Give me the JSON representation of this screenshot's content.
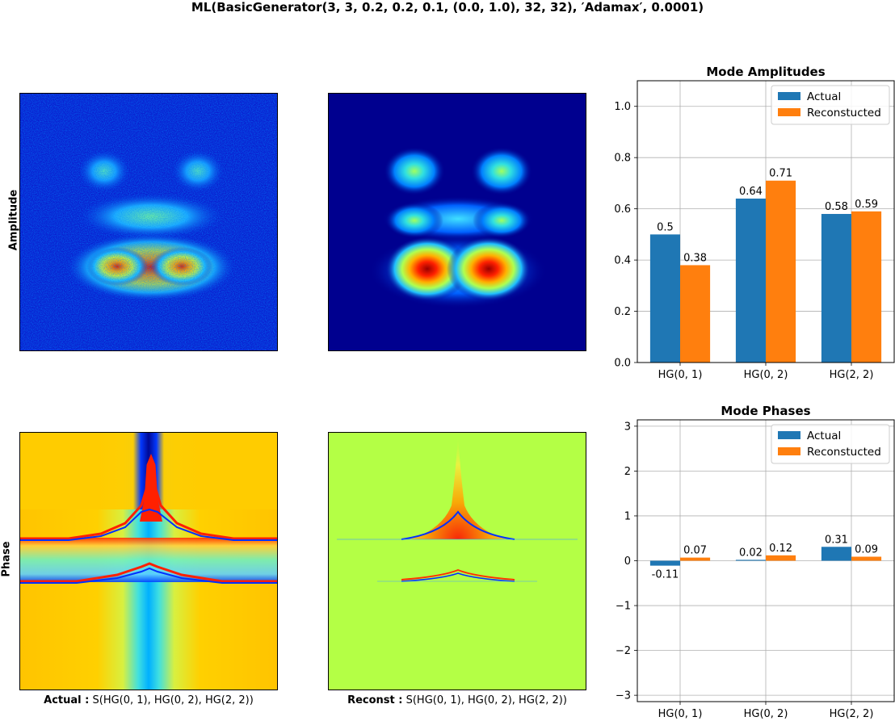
{
  "figure": {
    "suptitle": "ML(BasicGenerator(3, 3, 0.2, 0.2, 0.1, (0.0, 1.0), 32, 32), ′Adamax′, 0.0001)",
    "row_labels": {
      "amplitude": "Amplitude",
      "phase": "Phase"
    },
    "captions": {
      "actual_prefix": "Actual :",
      "actual_text": "S(HG(0, 1), HG(0, 2), HG(2, 2))",
      "recon_prefix": "Reconst :",
      "recon_text": "S(HG(0, 1), HG(0, 2), HG(2, 2))"
    },
    "colors": {
      "actual": "#1f77b4",
      "reconstructed": "#ff7f0e",
      "grid": "#b0b0b0"
    }
  },
  "chart_data": [
    {
      "type": "bar",
      "title": "Mode Amplitudes",
      "categories": [
        "HG(0, 1)",
        "HG(0, 2)",
        "HG(2, 2)"
      ],
      "series": [
        {
          "name": "Actual",
          "values": [
            0.5,
            0.64,
            0.58
          ],
          "labels": [
            "0.5",
            "0.64",
            "0.58"
          ]
        },
        {
          "name": "Reconstucted",
          "values": [
            0.38,
            0.71,
            0.59
          ],
          "labels": [
            "0.38",
            "0.71",
            "0.59"
          ]
        }
      ],
      "ylim": [
        0,
        1.1
      ],
      "yticks": [
        0.0,
        0.2,
        0.4,
        0.6,
        0.8,
        1.0
      ],
      "ytick_labels": [
        "0.0",
        "0.2",
        "0.4",
        "0.6",
        "0.8",
        "1.0"
      ],
      "grid": true,
      "legend": "top-right"
    },
    {
      "type": "bar",
      "title": "Mode Phases",
      "categories": [
        "HG(0, 1)",
        "HG(0, 2)",
        "HG(2, 2)"
      ],
      "series": [
        {
          "name": "Actual",
          "values": [
            -0.11,
            0.02,
            0.31
          ],
          "labels": [
            "-0.11",
            "0.02",
            "0.31"
          ]
        },
        {
          "name": "Reconstucted",
          "values": [
            0.07,
            0.12,
            0.09
          ],
          "labels": [
            "0.07",
            "0.12",
            "0.09"
          ]
        }
      ],
      "ylim": [
        -3.14159,
        3.14159
      ],
      "yticks": [
        -3,
        -2,
        -1,
        0,
        1,
        2,
        3
      ],
      "ytick_labels": [
        "−3",
        "−2",
        "−1",
        "0",
        "1",
        "2",
        "3"
      ],
      "grid": true,
      "legend": "top-right"
    }
  ]
}
